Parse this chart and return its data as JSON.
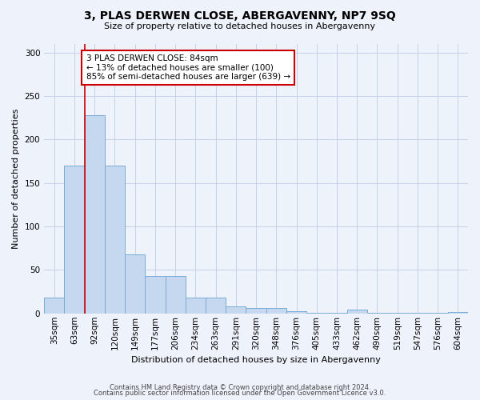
{
  "title": "3, PLAS DERWEN CLOSE, ABERGAVENNY, NP7 9SQ",
  "subtitle": "Size of property relative to detached houses in Abergavenny",
  "xlabel": "Distribution of detached houses by size in Abergavenny",
  "ylabel": "Number of detached properties",
  "categories": [
    "35sqm",
    "63sqm",
    "92sqm",
    "120sqm",
    "149sqm",
    "177sqm",
    "206sqm",
    "234sqm",
    "263sqm",
    "291sqm",
    "320sqm",
    "348sqm",
    "376sqm",
    "405sqm",
    "433sqm",
    "462sqm",
    "490sqm",
    "519sqm",
    "547sqm",
    "576sqm",
    "604sqm"
  ],
  "values": [
    18,
    170,
    228,
    170,
    68,
    43,
    43,
    18,
    18,
    8,
    6,
    6,
    3,
    1,
    1,
    4,
    1,
    1,
    1,
    1,
    2
  ],
  "bar_color": "#c5d8f0",
  "bar_edge_color": "#7aadd4",
  "marker_line_color": "#cc0000",
  "annotation_text": "3 PLAS DERWEN CLOSE: 84sqm\n← 13% of detached houses are smaller (100)\n85% of semi-detached houses are larger (639) →",
  "annotation_box_facecolor": "#ffffff",
  "annotation_box_edgecolor": "#cc0000",
  "ylim": [
    0,
    310
  ],
  "yticks": [
    0,
    50,
    100,
    150,
    200,
    250,
    300
  ],
  "footer_line1": "Contains HM Land Registry data © Crown copyright and database right 2024.",
  "footer_line2": "Contains public sector information licensed under the Open Government Licence v3.0.",
  "background_color": "#eef2fb",
  "grid_color": "#c8d0e8",
  "title_fontsize": 10,
  "subtitle_fontsize": 8,
  "axis_label_fontsize": 8,
  "tick_fontsize": 7.5,
  "annotation_fontsize": 7.5,
  "footer_fontsize": 6
}
